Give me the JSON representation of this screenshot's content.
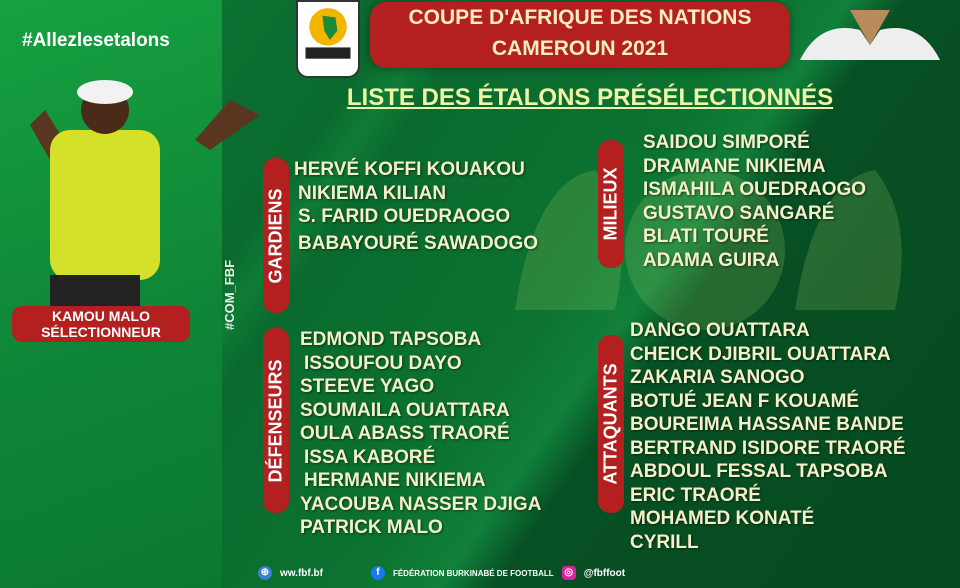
{
  "hashtag": "#Allezlesetalons",
  "coach": {
    "name": "KAMOU MALO",
    "role": "SÉLECTIONNEUR"
  },
  "side_tag": "#COM_FBF",
  "caf_logo": "CAF AFRICA CUP OF NATIONS",
  "fbf_logo": "FBF",
  "title_line1": "COUPE D'AFRIQUE  DES NATIONS",
  "title_line2": "CAMEROUN 2021",
  "subtitle": "LISTE DES ÉTALONS PRÉSÉLECTIONNÉS",
  "groups": {
    "gardiens": {
      "label": "GARDIENS",
      "players": [
        "HERVÉ KOFFI KOUAKOU",
        "NIKIEMA KILIAN",
        "S. FARID OUEDRAOGO",
        "BABAYOURÉ SAWADOGO"
      ]
    },
    "defenseurs": {
      "label": "DÉFENSEURS",
      "players": [
        "EDMOND TAPSOBA",
        "ISSOUFOU DAYO",
        "STEEVE YAGO",
        "SOUMAILA OUATTARA",
        "OULA ABASS TRAORÉ",
        "ISSA KABORÉ",
        "HERMANE NIKIEMA",
        "YACOUBA NASSER DJIGA",
        "PATRICK MALO"
      ]
    },
    "milieux": {
      "label": "MILIEUX",
      "players": [
        "SAIDOU SIMPORÉ",
        "DRAMANE NIKIEMA",
        "ISMAHILA OUEDRAOGO",
        "GUSTAVO SANGARÉ",
        "BLATI TOURÉ",
        "ADAMA GUIRA"
      ]
    },
    "attaquants": {
      "label": "ATTAQUANTS",
      "players": [
        "DANGO OUATTARA",
        "CHEICK DJIBRIL OUATTARA",
        "ZAKARIA SANOGO",
        "BOTUÉ JEAN F KOUAMÉ",
        "BOUREIMA HASSANE BANDE",
        "BERTRAND ISIDORE TRAORÉ",
        "ABDOUL FESSAL TAPSOBA",
        "ERIC TRAORÉ",
        "MOHAMED KONATÉ",
        "CYRILL"
      ]
    }
  },
  "footer": {
    "website": "ww.fbf.bf",
    "facebook": "FÉDÉRATION BURKINABÉ DE FOOTBALL",
    "instagram": "@fbffoot"
  },
  "colors": {
    "red": "#b3201f",
    "green": "#0a6a2e",
    "text": "#f5f0c8"
  }
}
